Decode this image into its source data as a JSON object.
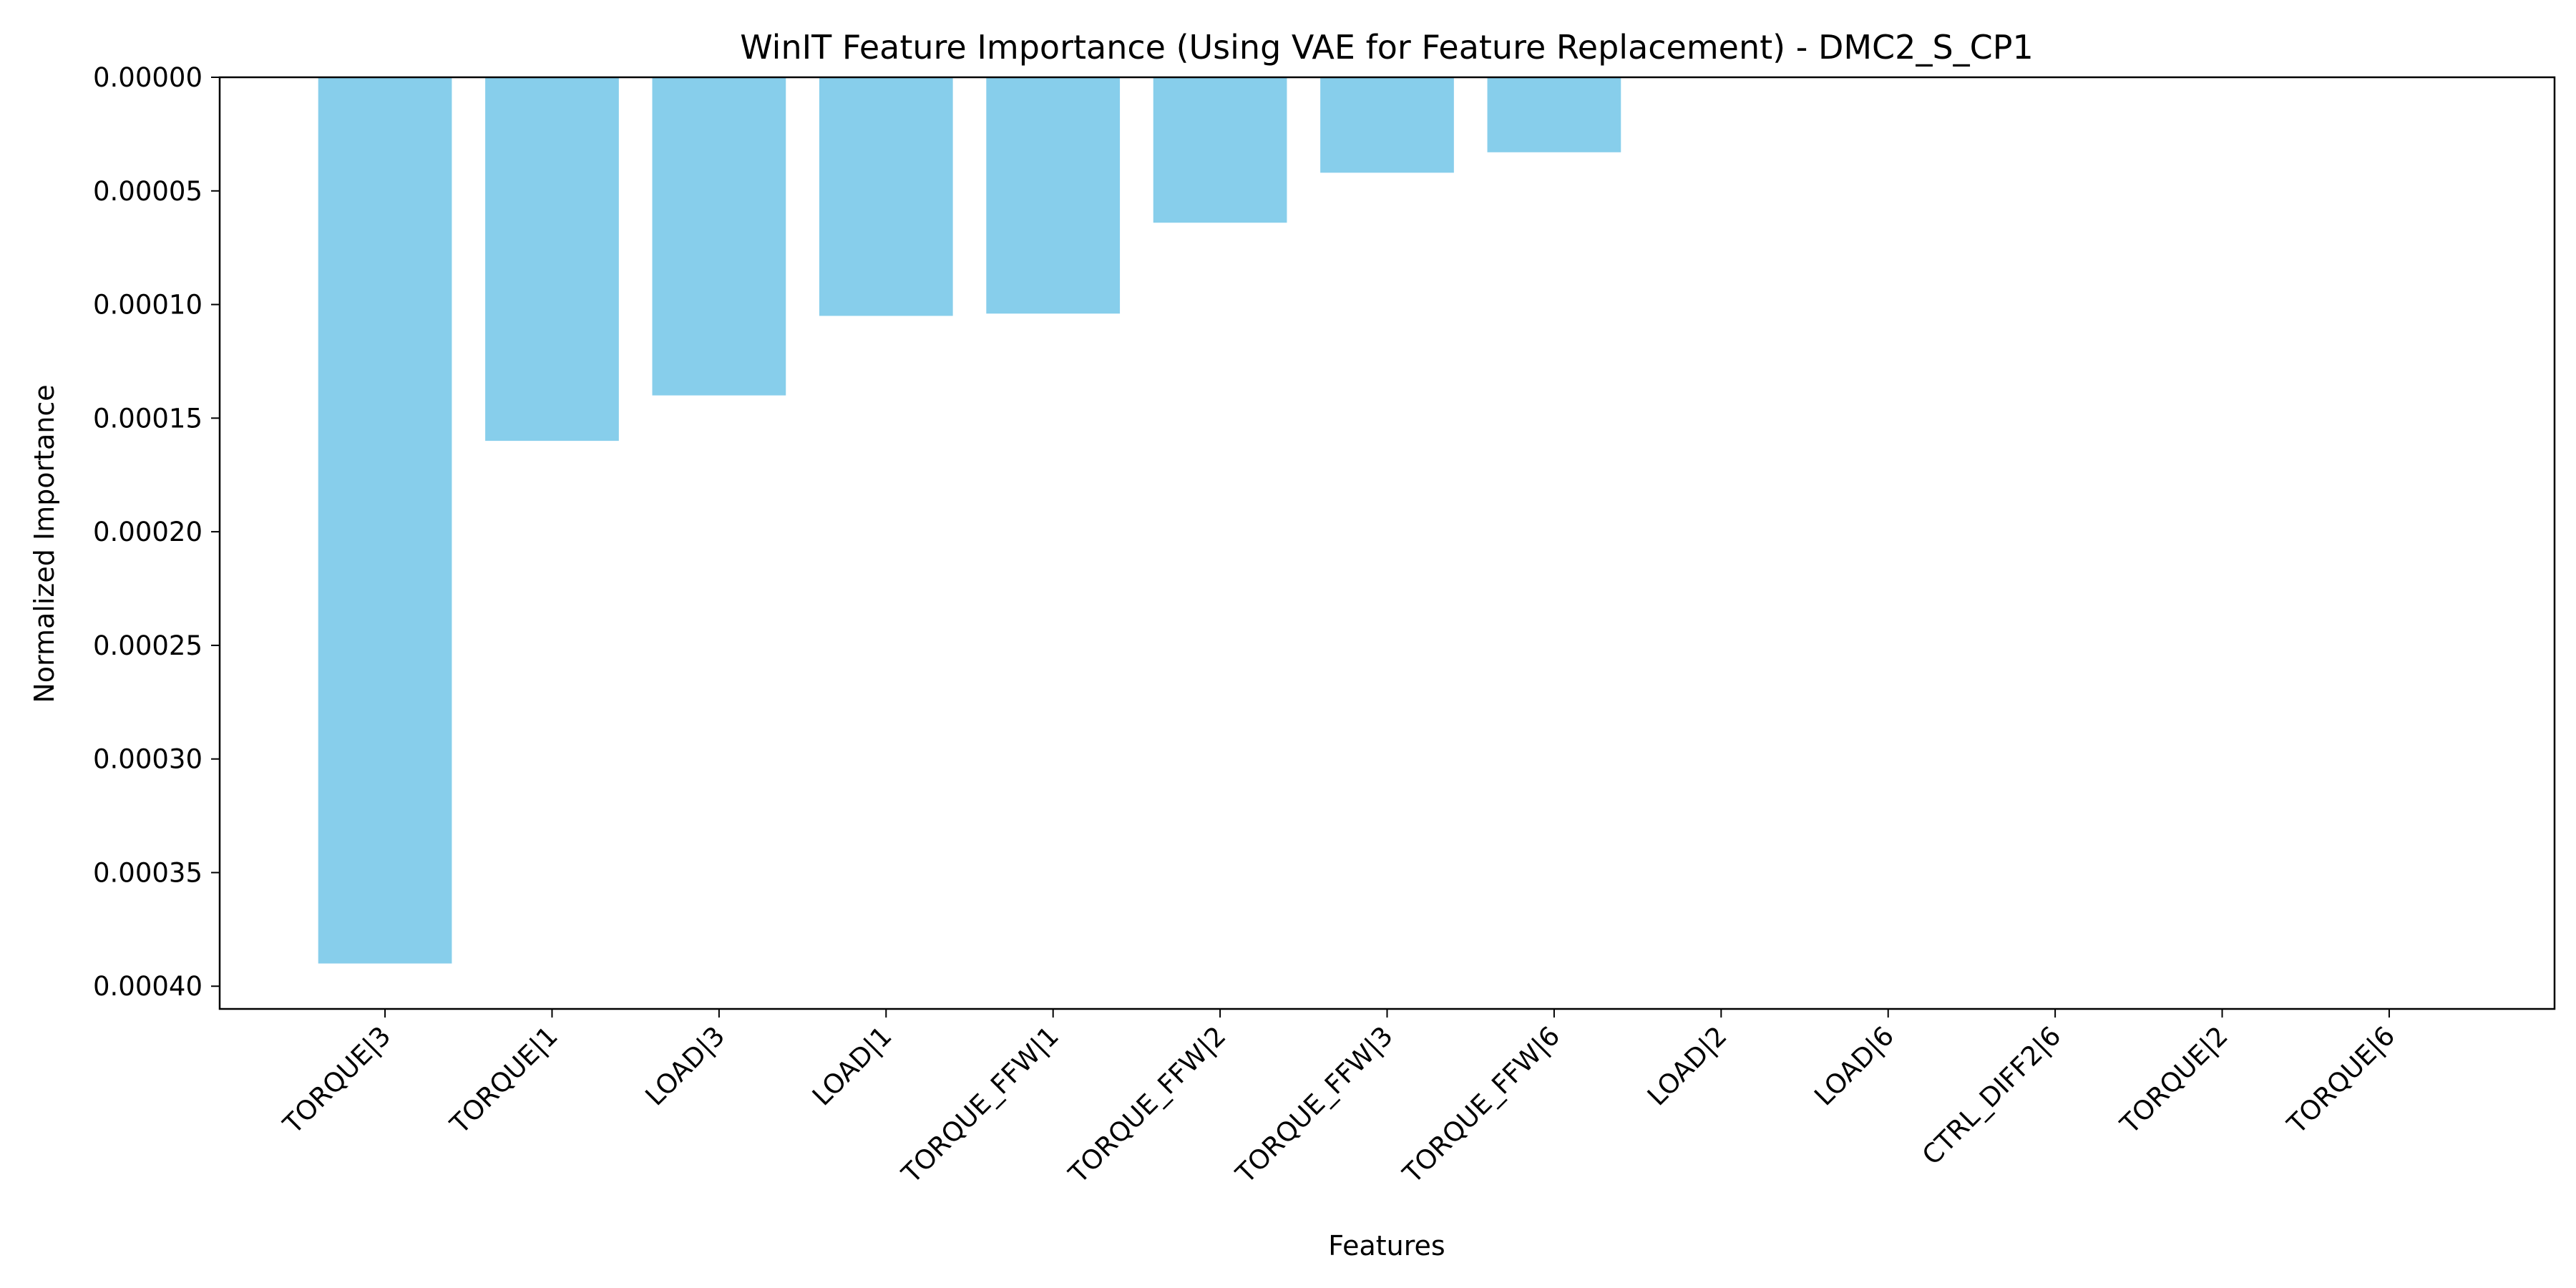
{
  "chart_data": {
    "type": "bar",
    "title": "WinIT Feature Importance (Using VAE for Feature Replacement) - DMC2_S_CP1",
    "xlabel": "Features",
    "ylabel": "Normalized Importance",
    "categories": [
      "TORQUE|3",
      "TORQUE|1",
      "LOAD|3",
      "LOAD|1",
      "TORQUE_FFW|1",
      "TORQUE_FFW|2",
      "TORQUE_FFW|3",
      "TORQUE_FFW|6",
      "LOAD|2",
      "LOAD|6",
      "CTRL_DIFF2|6",
      "TORQUE|2",
      "TORQUE|6"
    ],
    "values": [
      0.00039,
      0.00016,
      0.00014,
      0.000105,
      0.000104,
      6.4e-05,
      4.2e-05,
      3.3e-05,
      0,
      0,
      0,
      0,
      0
    ],
    "ylim": [
      0,
      0.00041
    ],
    "y_inverted": true,
    "y_ticks": [
      0,
      5e-05,
      0.0001,
      0.00015,
      0.0002,
      0.00025,
      0.0003,
      0.00035,
      0.0004
    ],
    "y_tick_labels": [
      "0.00000",
      "0.00005",
      "0.00010",
      "0.00015",
      "0.00020",
      "0.00025",
      "0.00030",
      "0.00035",
      "0.00040"
    ],
    "grid": false,
    "bar_color": "#87ceeb"
  }
}
